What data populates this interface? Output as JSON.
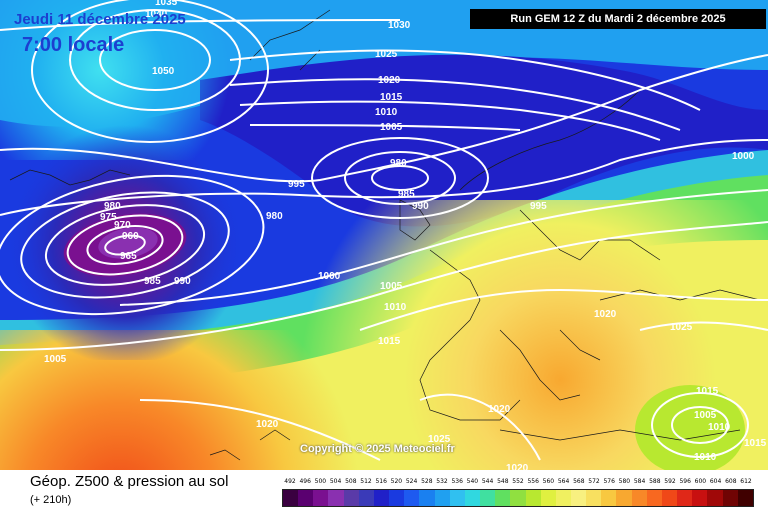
{
  "header": {
    "date": "Jeudi 11 décembre 2025",
    "time": "7:00 locale",
    "run": "Run GEM 12 Z du Mardi 2 décembre 2025"
  },
  "map": {
    "copyright": "Copyright © 2025 Meteociel.fr",
    "isobar_labels": [
      "1035",
      "1040",
      "1050",
      "1030",
      "1025",
      "1020",
      "1015",
      "1010",
      "1005",
      "980",
      "985",
      "990",
      "995",
      "1000",
      "980",
      "975",
      "970",
      "960",
      "965",
      "985",
      "990",
      "980",
      "1000",
      "1005",
      "1010",
      "1015",
      "1020",
      "1025",
      "1020",
      "1025",
      "1020",
      "1015",
      "1005",
      "1010",
      "1015",
      "1010",
      "1005",
      "995"
    ]
  },
  "footer": {
    "title": "Géop. Z500 & pression au sol",
    "subtitle": "(+ 210h)"
  },
  "scale": {
    "labels": [
      "492",
      "496",
      "500",
      "504",
      "508",
      "512",
      "516",
      "520",
      "524",
      "528",
      "532",
      "536",
      "540",
      "544",
      "548",
      "552",
      "556",
      "560",
      "564",
      "568",
      "572",
      "576",
      "580",
      "584",
      "588",
      "592",
      "596",
      "600",
      "604",
      "608",
      "612"
    ],
    "colors": [
      "#3a0040",
      "#5a0070",
      "#7a1090",
      "#8a30b0",
      "#5a3aa8",
      "#3a3ab8",
      "#2020c8",
      "#1a3ae0",
      "#1e5af0",
      "#1a80f0",
      "#20a0f0",
      "#30c0f0",
      "#30d8e0",
      "#40e0a0",
      "#60e060",
      "#90e040",
      "#b8e830",
      "#e0f040",
      "#f0f060",
      "#f8f080",
      "#f8e060",
      "#f8c840",
      "#f8a830",
      "#f88828",
      "#f86820",
      "#f04818",
      "#e02818",
      "#c81010",
      "#a00808",
      "#700404",
      "#400000"
    ]
  }
}
